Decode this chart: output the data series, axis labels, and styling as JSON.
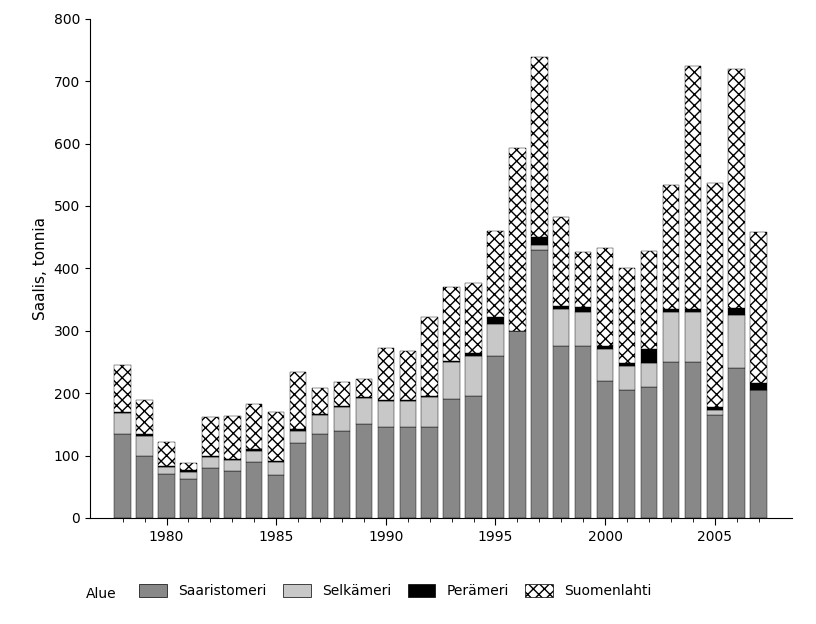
{
  "years": [
    1978,
    1979,
    1980,
    1981,
    1982,
    1983,
    1984,
    1985,
    1986,
    1987,
    1988,
    1989,
    1990,
    1991,
    1992,
    1993,
    1994,
    1995,
    1996,
    1997,
    1998,
    1999,
    2000,
    2001,
    2002,
    2003,
    2004,
    2005,
    2006,
    2007
  ],
  "saaristomeri": [
    135,
    100,
    70,
    62,
    80,
    75,
    90,
    68,
    120,
    135,
    140,
    150,
    145,
    145,
    145,
    190,
    195,
    260,
    300,
    430,
    275,
    275,
    220,
    205,
    210,
    250,
    250,
    165,
    240,
    205
  ],
  "selkameri": [
    33,
    32,
    12,
    12,
    18,
    18,
    18,
    22,
    20,
    30,
    38,
    42,
    42,
    42,
    48,
    60,
    65,
    50,
    0,
    8,
    60,
    55,
    50,
    38,
    38,
    80,
    80,
    8,
    85,
    0
  ],
  "perameri": [
    2,
    2,
    2,
    2,
    2,
    2,
    2,
    2,
    2,
    2,
    2,
    2,
    2,
    2,
    2,
    2,
    5,
    12,
    0,
    12,
    5,
    8,
    5,
    5,
    22,
    5,
    5,
    5,
    12,
    12
  ],
  "suomenlahti": [
    75,
    55,
    38,
    12,
    62,
    68,
    72,
    78,
    92,
    42,
    38,
    28,
    83,
    78,
    127,
    118,
    112,
    138,
    293,
    288,
    143,
    88,
    158,
    152,
    158,
    198,
    390,
    358,
    382,
    242
  ],
  "ylabel": "Saalis, tonnia",
  "ylim": [
    0,
    800
  ],
  "yticks": [
    0,
    100,
    200,
    300,
    400,
    500,
    600,
    700,
    800
  ],
  "color_saaristomeri": "#888888",
  "color_selkameri": "#c8c8c8",
  "color_perameri": "#000000",
  "hatch_suomenlahti": "xxx",
  "bar_width": 0.75,
  "xlim_left": 1976.5,
  "xlim_right": 2008.5,
  "xtick_major": [
    1980,
    1985,
    1990,
    1995,
    2000,
    2005
  ]
}
